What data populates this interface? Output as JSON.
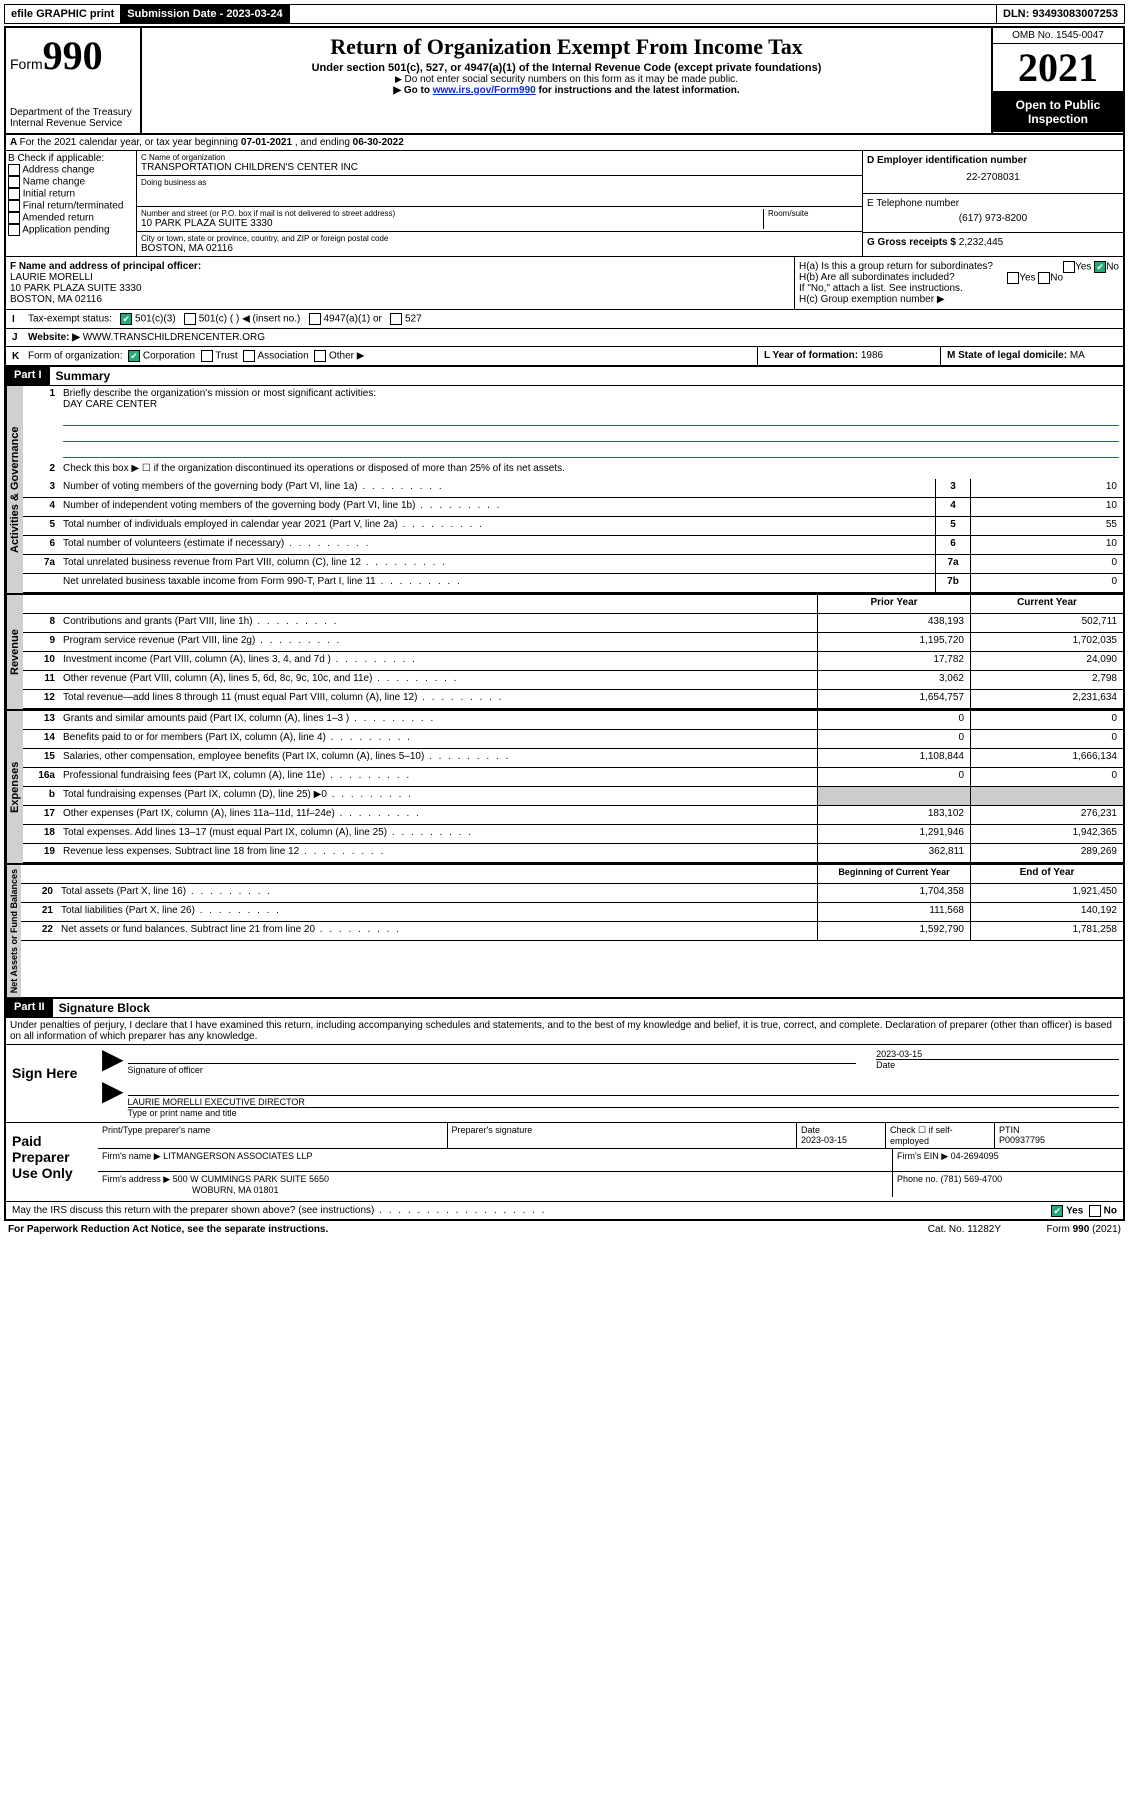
{
  "topbar": {
    "efile": "efile GRAPHIC print",
    "sub_label": "Submission Date - 2023-03-24",
    "dln": "DLN: 93493083007253"
  },
  "header": {
    "form_prefix": "Form",
    "form_no": "990",
    "dept": "Department of the Treasury",
    "irs": "Internal Revenue Service",
    "title": "Return of Organization Exempt From Income Tax",
    "sub": "Under section 501(c), 527, or 4947(a)(1) of the Internal Revenue Code (except private foundations)",
    "note1": "Do not enter social security numbers on this form as it may be made public.",
    "note2_pre": "Go to ",
    "note2_link": "www.irs.gov/Form990",
    "note2_post": " for instructions and the latest information.",
    "omb": "OMB No. 1545-0047",
    "year": "2021",
    "open": "Open to Public Inspection"
  },
  "secA": {
    "text_pre": "For the 2021 calendar year, or tax year beginning ",
    "begin": "07-01-2021",
    "mid": " , and ending ",
    "end": "06-30-2022"
  },
  "boxB": {
    "label": "B Check if applicable:",
    "items": [
      "Address change",
      "Name change",
      "Initial return",
      "Final return/terminated",
      "Amended return",
      "Application pending"
    ]
  },
  "boxC": {
    "name_lbl": "C Name of organization",
    "name": "TRANSPORTATION CHILDREN'S CENTER INC",
    "dba_lbl": "Doing business as",
    "dba": "",
    "addr_lbl": "Number and street (or P.O. box if mail is not delivered to street address)",
    "suite_lbl": "Room/suite",
    "addr": "10 PARK PLAZA SUITE 3330",
    "city_lbl": "City or town, state or province, country, and ZIP or foreign postal code",
    "city": "BOSTON, MA  02116"
  },
  "boxD": {
    "lbl": "D Employer identification number",
    "val": "22-2708031"
  },
  "boxE": {
    "lbl": "E Telephone number",
    "val": "(617) 973-8200"
  },
  "boxG": {
    "lbl": "G Gross receipts $",
    "val": "2,232,445"
  },
  "boxF": {
    "lbl": "F  Name and address of principal officer:",
    "name": "LAURIE MORELLI",
    "addr1": "10 PARK PLAZA SUITE 3330",
    "addr2": "BOSTON, MA  02116"
  },
  "boxH": {
    "a": "H(a)  Is this a group return for subordinates?",
    "b": "H(b)  Are all subordinates included?",
    "b_note": "If \"No,\" attach a list. See instructions.",
    "c": "H(c)  Group exemption number ▶",
    "yes": "Yes",
    "no": "No"
  },
  "lineI": {
    "lead": "I",
    "lbl": "Tax-exempt status:",
    "o1": "501(c)(3)",
    "o2": "501(c) (  ) ◀ (insert no.)",
    "o3": "4947(a)(1) or",
    "o4": "527"
  },
  "lineJ": {
    "lead": "J",
    "lbl": "Website: ▶",
    "val": " WWW.TRANSCHILDRENCENTER.ORG"
  },
  "lineK": {
    "lead": "K",
    "lbl": "Form of organization:",
    "o1": "Corporation",
    "o2": "Trust",
    "o3": "Association",
    "o4": "Other ▶"
  },
  "lineL": {
    "lbl": "L Year of formation: ",
    "val": "1986"
  },
  "lineM": {
    "lbl": "M State of legal domicile: ",
    "val": "MA"
  },
  "part1": {
    "hdr": "Part I",
    "title": "Summary",
    "q1_lbl": "Briefly describe the organization's mission or most significant activities:",
    "q1_val": "DAY CARE CENTER",
    "q2": "Check this box ▶ ☐  if the organization discontinued its operations or disposed of more than 25% of its net assets.",
    "rows_gov": [
      {
        "n": "3",
        "d": "Number of voting members of the governing body (Part VI, line 1a)",
        "box": "3",
        "v": "10"
      },
      {
        "n": "4",
        "d": "Number of independent voting members of the governing body (Part VI, line 1b)",
        "box": "4",
        "v": "10"
      },
      {
        "n": "5",
        "d": "Total number of individuals employed in calendar year 2021 (Part V, line 2a)",
        "box": "5",
        "v": "55"
      },
      {
        "n": "6",
        "d": "Total number of volunteers (estimate if necessary)",
        "box": "6",
        "v": "10"
      },
      {
        "n": "7a",
        "d": "Total unrelated business revenue from Part VIII, column (C), line 12",
        "box": "7a",
        "v": "0"
      },
      {
        "n": "",
        "d": "Net unrelated business taxable income from Form 990-T, Part I, line 11",
        "box": "7b",
        "v": "0"
      }
    ],
    "col_prior": "Prior Year",
    "col_curr": "Current Year",
    "rows_rev": [
      {
        "n": "8",
        "d": "Contributions and grants (Part VIII, line 1h)",
        "p": "438,193",
        "c": "502,711"
      },
      {
        "n": "9",
        "d": "Program service revenue (Part VIII, line 2g)",
        "p": "1,195,720",
        "c": "1,702,035"
      },
      {
        "n": "10",
        "d": "Investment income (Part VIII, column (A), lines 3, 4, and 7d )",
        "p": "17,782",
        "c": "24,090"
      },
      {
        "n": "11",
        "d": "Other revenue (Part VIII, column (A), lines 5, 6d, 8c, 9c, 10c, and 11e)",
        "p": "3,062",
        "c": "2,798"
      },
      {
        "n": "12",
        "d": "Total revenue—add lines 8 through 11 (must equal Part VIII, column (A), line 12)",
        "p": "1,654,757",
        "c": "2,231,634"
      }
    ],
    "rows_exp": [
      {
        "n": "13",
        "d": "Grants and similar amounts paid (Part IX, column (A), lines 1–3 )",
        "p": "0",
        "c": "0"
      },
      {
        "n": "14",
        "d": "Benefits paid to or for members (Part IX, column (A), line 4)",
        "p": "0",
        "c": "0"
      },
      {
        "n": "15",
        "d": "Salaries, other compensation, employee benefits (Part IX, column (A), lines 5–10)",
        "p": "1,108,844",
        "c": "1,666,134"
      },
      {
        "n": "16a",
        "d": "Professional fundraising fees (Part IX, column (A), line 11e)",
        "p": "0",
        "c": "0"
      },
      {
        "n": "b",
        "d": "Total fundraising expenses (Part IX, column (D), line 25) ▶0",
        "p": "",
        "c": "",
        "shade": true
      },
      {
        "n": "17",
        "d": "Other expenses (Part IX, column (A), lines 11a–11d, 11f–24e)",
        "p": "183,102",
        "c": "276,231"
      },
      {
        "n": "18",
        "d": "Total expenses. Add lines 13–17 (must equal Part IX, column (A), line 25)",
        "p": "1,291,946",
        "c": "1,942,365"
      },
      {
        "n": "19",
        "d": "Revenue less expenses. Subtract line 18 from line 12",
        "p": "362,811",
        "c": "289,269"
      }
    ],
    "col_begin": "Beginning of Current Year",
    "col_end": "End of Year",
    "rows_net": [
      {
        "n": "20",
        "d": "Total assets (Part X, line 16)",
        "p": "1,704,358",
        "c": "1,921,450"
      },
      {
        "n": "21",
        "d": "Total liabilities (Part X, line 26)",
        "p": "111,568",
        "c": "140,192"
      },
      {
        "n": "22",
        "d": "Net assets or fund balances. Subtract line 21 from line 20",
        "p": "1,592,790",
        "c": "1,781,258"
      }
    ],
    "tab_gov": "Activities & Governance",
    "tab_rev": "Revenue",
    "tab_exp": "Expenses",
    "tab_net": "Net Assets or Fund Balances"
  },
  "part2": {
    "hdr": "Part II",
    "title": "Signature Block",
    "decl": "Under penalties of perjury, I declare that I have examined this return, including accompanying schedules and statements, and to the best of my knowledge and belief, it is true, correct, and complete. Declaration of preparer (other than officer) is based on all information of which preparer has any knowledge.",
    "sign_here": "Sign Here",
    "sig_officer": "Signature of officer",
    "sig_date": "2023-03-15",
    "date_lbl": "Date",
    "name_title": "LAURIE MORELLI  EXECUTIVE DIRECTOR",
    "name_lbl": "Type or print name and title",
    "paid": "Paid Preparer Use Only",
    "p_name_lbl": "Print/Type preparer's name",
    "p_sig_lbl": "Preparer's signature",
    "p_date_lbl": "Date",
    "p_date": "2023-03-15",
    "p_check_lbl": "Check ☐ if self-employed",
    "ptin_lbl": "PTIN",
    "ptin": "P00937795",
    "firm_name_lbl": "Firm's name   ▶",
    "firm_name": " LITMANGERSON ASSOCIATES LLP",
    "firm_ein_lbl": "Firm's EIN ▶",
    "firm_ein": " 04-2694095",
    "firm_addr_lbl": "Firm's address ▶",
    "firm_addr": " 500 W CUMMINGS PARK SUITE 5650",
    "firm_addr2": "WOBURN, MA  01801",
    "phone_lbl": "Phone no. ",
    "phone": "(781) 569-4700",
    "may_irs": "May the IRS discuss this return with the preparer shown above? (see instructions)",
    "yes": "Yes",
    "no": "No"
  },
  "footer": {
    "pra": "For Paperwork Reduction Act Notice, see the separate instructions.",
    "cat": "Cat. No. 11282Y",
    "form": "Form 990 (2021)"
  }
}
